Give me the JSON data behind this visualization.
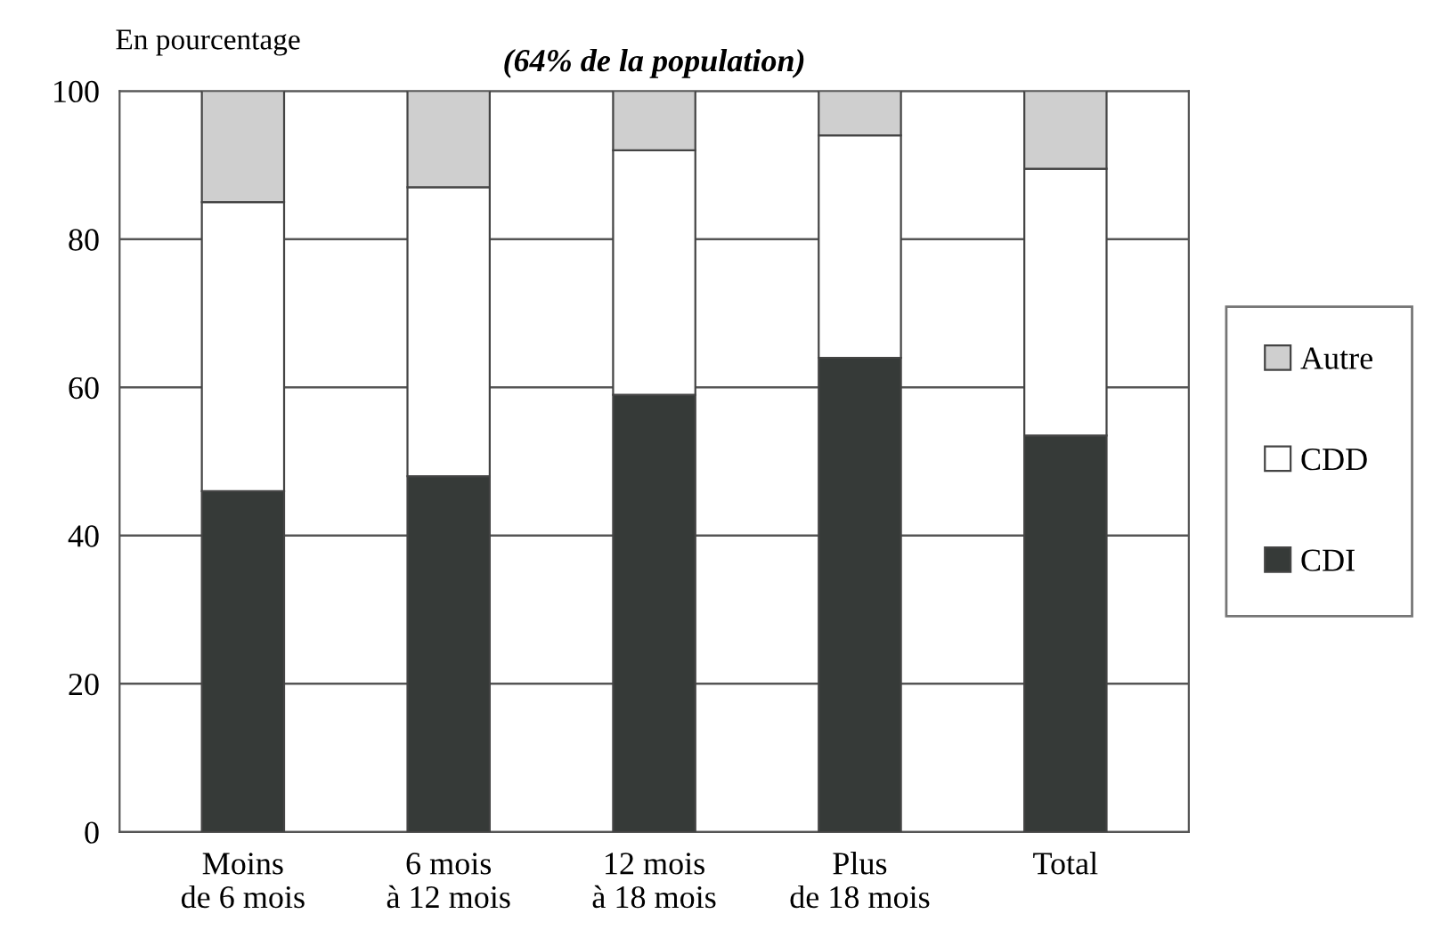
{
  "chart_data": {
    "type": "bar",
    "title": "(64% de la population)",
    "ylabel": "En pourcentage",
    "categories": [
      "Moins\nde 6 mois",
      "6 mois\nà 12 mois",
      "12 mois\nà 18 mois",
      "Plus\nde 18 mois",
      "Total"
    ],
    "series": [
      {
        "name": "CDI",
        "color": "#363a38",
        "values": [
          46,
          48,
          59,
          64,
          53.5
        ]
      },
      {
        "name": "CDD",
        "color": "#ffffff",
        "values": [
          39,
          39,
          33,
          30,
          36
        ]
      },
      {
        "name": "Autre",
        "color": "#cfcfcf",
        "values": [
          15,
          13,
          8,
          6,
          10.5
        ]
      }
    ],
    "stacked": true,
    "ylim": [
      0,
      100
    ],
    "yticks": [
      0,
      20,
      40,
      60,
      80,
      100
    ],
    "grid": "y",
    "legend": "right"
  }
}
